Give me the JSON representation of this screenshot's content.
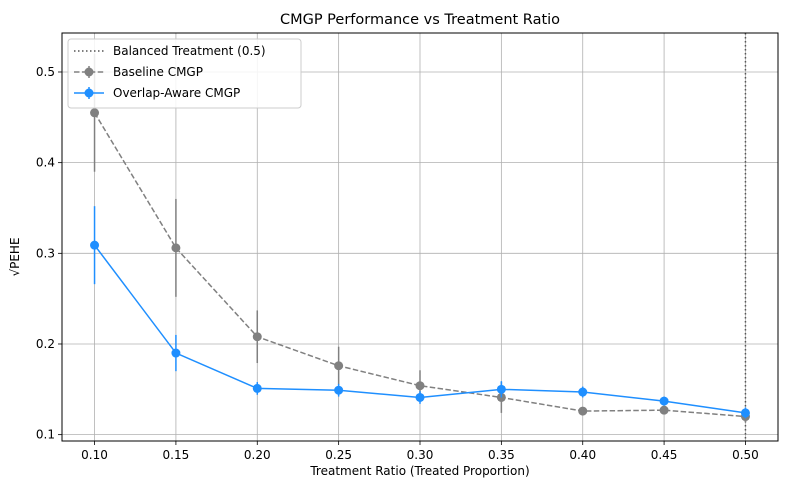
{
  "chart_data": {
    "type": "line",
    "title": "CMGP Performance vs Treatment Ratio",
    "xlabel": "Treatment Ratio (Treated Proportion)",
    "ylabel": "√PEHE",
    "xlim": [
      0.08,
      0.52
    ],
    "ylim": [
      0.093,
      0.543
    ],
    "xticks": [
      "0.10",
      "0.15",
      "0.20",
      "0.25",
      "0.30",
      "0.35",
      "0.40",
      "0.45",
      "0.50"
    ],
    "yticks": [
      "0.1",
      "0.2",
      "0.3",
      "0.4",
      "0.5"
    ],
    "grid": true,
    "legend_position": "upper-left",
    "x": [
      0.1,
      0.15,
      0.2,
      0.25,
      0.3,
      0.35,
      0.4,
      0.45,
      0.5
    ],
    "reference_line": {
      "name": "Balanced Treatment (0.5)",
      "x": 0.5,
      "style": "dotted",
      "color": "#555555"
    },
    "series": [
      {
        "name": "Baseline CMGP",
        "color": "#808080",
        "style": "dashed",
        "values": [
          0.455,
          0.306,
          0.208,
          0.176,
          0.154,
          0.141,
          0.126,
          0.127,
          0.12
        ],
        "errors": [
          0.065,
          0.054,
          0.029,
          0.021,
          0.017,
          0.017,
          0.004,
          0.004,
          0.006
        ]
      },
      {
        "name": "Overlap-Aware CMGP",
        "color": "#1f8fff",
        "style": "solid",
        "values": [
          0.309,
          0.19,
          0.151,
          0.149,
          0.141,
          0.15,
          0.147,
          0.137,
          0.124
        ],
        "errors": [
          0.043,
          0.02,
          0.007,
          0.007,
          0.007,
          0.009,
          0.006,
          0.005,
          0.006
        ]
      }
    ]
  }
}
